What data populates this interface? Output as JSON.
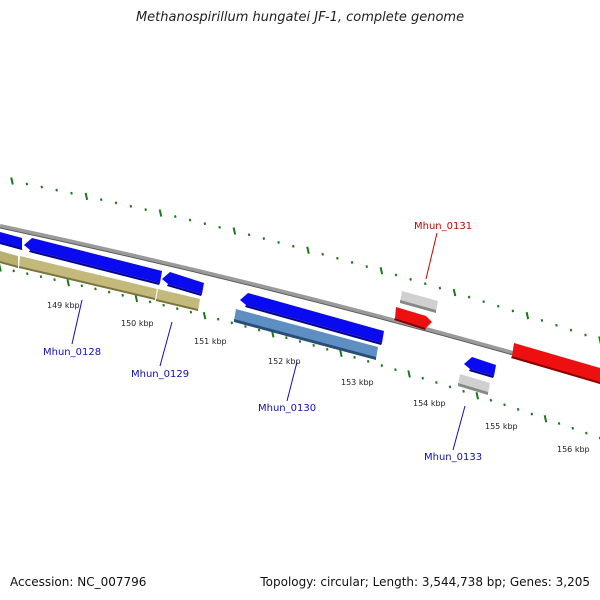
{
  "title": "Methanospirillum hungatei JF-1, complete genome",
  "footer": {
    "accession": "Accession: NC_007796",
    "summary": "Topology: circular; Length: 3,544,738 bp; Genes: 3,205"
  },
  "colors": {
    "backbone": "#808080",
    "tick": "#1a7a1a",
    "forward_gene": "#0a0af0",
    "reverse_gene": "#ee1010",
    "cds_tan": "#b9b070",
    "cds_steel": "#4a7fb5",
    "pseudo_gray": "#c0c0c0",
    "label_blue": "#1010b0",
    "label_red": "#cc0000"
  },
  "scale": {
    "unit": "kbp",
    "labels": [
      "149 kbp",
      "150 kbp",
      "151 kbp",
      "152 kbp",
      "153 kbp",
      "154 kbp",
      "155 kbp",
      "156 kbp"
    ]
  },
  "gene_labels": [
    {
      "id": "Mhun_0128",
      "color": "label_blue"
    },
    {
      "id": "Mhun_0129",
      "color": "label_blue"
    },
    {
      "id": "Mhun_0130",
      "color": "label_blue"
    },
    {
      "id": "Mhun_0131",
      "color": "label_red"
    },
    {
      "id": "Mhun_0133",
      "color": "label_blue"
    }
  ]
}
